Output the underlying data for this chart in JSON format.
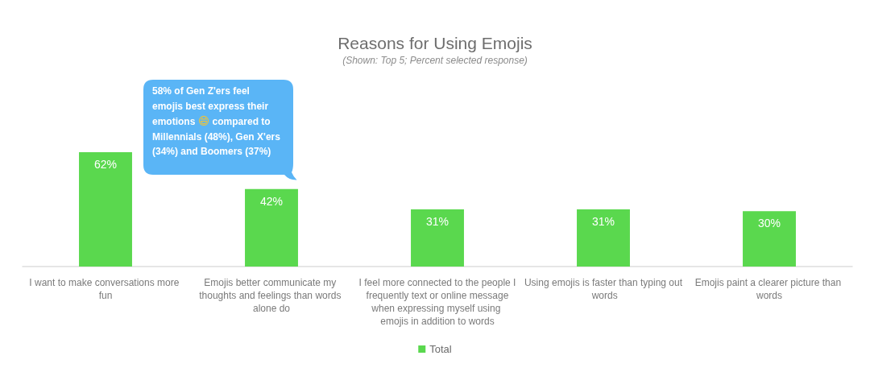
{
  "chart_data": {
    "type": "bar",
    "title": "Reasons for Using Emojis",
    "subtitle": "(Shown: Top 5; Percent selected response)",
    "categories": [
      "I want to make conversations more fun",
      "Emojis better communicate my thoughts and feelings than words alone do",
      "I feel more connected to the people I frequently text or online message when expressing myself using emojis in addition to words",
      "Using emojis is faster than typing out words",
      "Emojis paint a clearer picture than words"
    ],
    "series": [
      {
        "name": "Total",
        "color": "#5ad84e",
        "values": [
          62,
          42,
          31,
          31,
          30
        ],
        "value_labels": [
          "62%",
          "42%",
          "31%",
          "31%",
          "30%"
        ]
      }
    ],
    "tick_labels": "x",
    "legend": "bottom",
    "annotations": [
      "58% of Gen Z'ers feel emojis best express their emotions 😄 compared to Millennials (48%), Gen X'ers (34%) and Boomers (37%)"
    ]
  }
}
